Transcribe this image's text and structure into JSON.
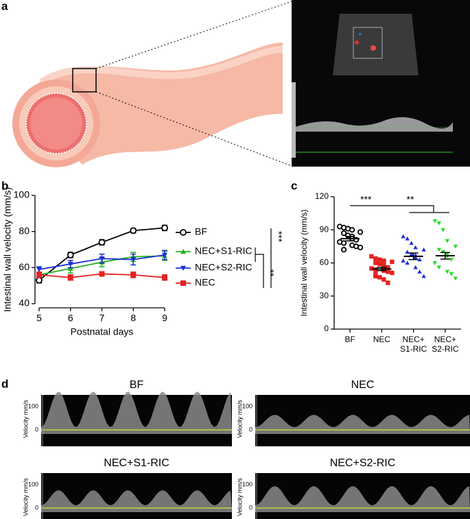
{
  "panel_labels": [
    "a",
    "b",
    "c",
    "d"
  ],
  "chart_data": [
    {
      "type": "line",
      "x_label": "Postnatal days",
      "y_label": "Intestinal wall velocity (mm/s)",
      "x": [
        5,
        6,
        7,
        8,
        9
      ],
      "xlim": [
        5,
        9
      ],
      "xticks": [
        5,
        6,
        7,
        8,
        9
      ],
      "ylim": [
        40,
        100
      ],
      "yticks": [
        40,
        60,
        80,
        100
      ],
      "series": [
        {
          "name": "BF",
          "color": "#000000",
          "marker": "circle-open",
          "values": [
            53,
            67,
            74,
            80.5,
            82
          ],
          "errors": [
            1.5,
            1.5,
            1.5,
            1.2,
            1.5
          ]
        },
        {
          "name": "NEC+S1-RIC",
          "color": "#22b022",
          "marker": "triangle-up",
          "values": [
            56,
            59.5,
            63,
            66,
            66.5
          ],
          "errors": [
            1.5,
            2.5,
            2.5,
            2.5,
            2.5
          ]
        },
        {
          "name": "NEC+S2-RIC",
          "color": "#1c2fd6",
          "marker": "triangle-down",
          "values": [
            59,
            62,
            65,
            64.5,
            67
          ],
          "errors": [
            1.5,
            2,
            2.5,
            3,
            2.5
          ]
        },
        {
          "name": "NEC",
          "color": "#e52222",
          "marker": "square",
          "values": [
            56,
            54.5,
            56.5,
            56,
            54.5
          ],
          "errors": [
            1.5,
            1.5,
            1.2,
            1.5,
            1.5
          ]
        }
      ],
      "annotations": [
        "***",
        "**"
      ]
    },
    {
      "type": "strip",
      "y_label": "Intestinal wall velocity (mm/s)",
      "categories": [
        "BF",
        "NEC",
        "NEC+\nS1-RIC",
        "NEC+\nS2-RIC"
      ],
      "ylim": [
        0,
        120
      ],
      "yticks": [
        0,
        30,
        60,
        90,
        120
      ],
      "series": [
        {
          "color": "#000000",
          "marker": "circle-open",
          "values": [
            93,
            92,
            91,
            90,
            88,
            87,
            85,
            84,
            82,
            81,
            79,
            78,
            76,
            75,
            74,
            72
          ],
          "mean": 82,
          "sem": 2
        },
        {
          "color": "#e52222",
          "marker": "square",
          "values": [
            66,
            64,
            63,
            62,
            61,
            60,
            59,
            58,
            57,
            56,
            55,
            54,
            53,
            52,
            51,
            50,
            48,
            47,
            45,
            42
          ],
          "mean": 54.5,
          "sem": 1.5
        },
        {
          "color": "#1c2fd6",
          "marker": "triangle-up",
          "values": [
            84,
            82,
            78,
            74,
            72,
            70,
            68,
            67,
            65,
            63,
            62,
            60,
            56,
            52,
            48
          ],
          "mean": 66,
          "sem": 3
        },
        {
          "color": "#22dd22",
          "marker": "triangle-down",
          "values": [
            98,
            96,
            90,
            80,
            75,
            72,
            70,
            68,
            66,
            63,
            60,
            56,
            52,
            50,
            46
          ],
          "mean": 66.5,
          "sem": 3
        }
      ],
      "annotations": [
        "***",
        "**"
      ]
    }
  ],
  "doppler": {
    "axis_label": "Velocity mm/s",
    "ticks": [
      "100",
      "0"
    ],
    "panels": [
      "BF",
      "NEC",
      "NEC+S1-RIC",
      "NEC+S2-RIC"
    ]
  }
}
